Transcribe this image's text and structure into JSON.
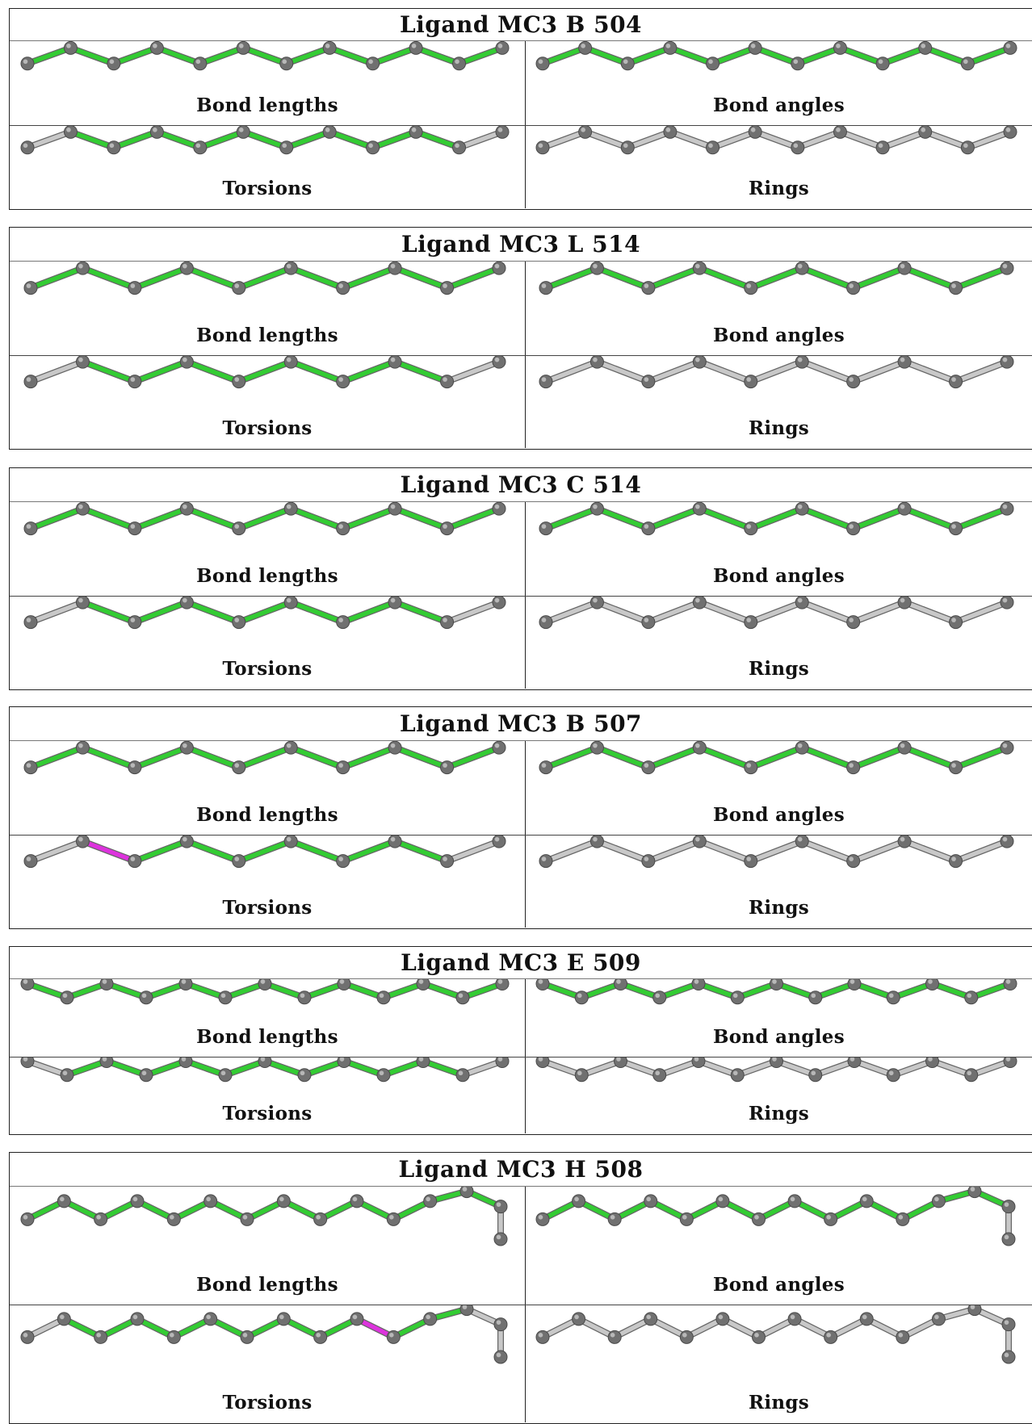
{
  "panels": [
    {
      "title": "Ligand MC3 B 504",
      "quadrants": [
        {
          "label": "Bond lengths",
          "bonds": [
            "green",
            "green",
            "green",
            "green",
            "green",
            "green",
            "green",
            "green",
            "green",
            "green",
            "green"
          ]
        },
        {
          "label": "Bond angles",
          "bonds": [
            "green",
            "green",
            "green",
            "green",
            "green",
            "green",
            "green",
            "green",
            "green",
            "green",
            "green"
          ]
        },
        {
          "label": "Torsions",
          "bonds": [
            "grey",
            "green",
            "green",
            "green",
            "green",
            "green",
            "green",
            "green",
            "green",
            "green",
            "grey"
          ]
        },
        {
          "label": "Rings",
          "bonds": [
            "grey",
            "grey",
            "grey",
            "grey",
            "grey",
            "grey",
            "grey",
            "grey",
            "grey",
            "grey",
            "grey"
          ]
        }
      ]
    },
    {
      "title": "Ligand MC3 L 514",
      "quadrants": [
        {
          "label": "Bond lengths",
          "bonds": [
            "green",
            "green",
            "green",
            "green",
            "green",
            "green",
            "green",
            "green",
            "green"
          ]
        },
        {
          "label": "Bond angles",
          "bonds": [
            "green",
            "green",
            "green",
            "green",
            "green",
            "green",
            "green",
            "green",
            "green"
          ]
        },
        {
          "label": "Torsions",
          "bonds": [
            "grey",
            "green",
            "green",
            "green",
            "green",
            "green",
            "green",
            "green",
            "grey"
          ]
        },
        {
          "label": "Rings",
          "bonds": [
            "grey",
            "grey",
            "grey",
            "grey",
            "grey",
            "grey",
            "grey",
            "grey",
            "grey"
          ]
        }
      ]
    },
    {
      "title": "Ligand MC3 C 514",
      "quadrants": [
        {
          "label": "Bond lengths",
          "bonds": [
            "green",
            "green",
            "green",
            "green",
            "green",
            "green",
            "green",
            "green",
            "green"
          ]
        },
        {
          "label": "Bond angles",
          "bonds": [
            "green",
            "green",
            "green",
            "green",
            "green",
            "green",
            "green",
            "green",
            "green"
          ]
        },
        {
          "label": "Torsions",
          "bonds": [
            "grey",
            "green",
            "green",
            "green",
            "green",
            "green",
            "green",
            "green",
            "grey"
          ]
        },
        {
          "label": "Rings",
          "bonds": [
            "grey",
            "grey",
            "grey",
            "grey",
            "grey",
            "grey",
            "grey",
            "grey",
            "grey"
          ]
        }
      ]
    },
    {
      "title": "Ligand MC3 B 507",
      "quadrants": [
        {
          "label": "Bond lengths",
          "bonds": [
            "green",
            "green",
            "green",
            "green",
            "green",
            "green",
            "green",
            "green",
            "green"
          ]
        },
        {
          "label": "Bond angles",
          "bonds": [
            "green",
            "green",
            "green",
            "green",
            "green",
            "green",
            "green",
            "green",
            "green"
          ]
        },
        {
          "label": "Torsions",
          "bonds": [
            "grey",
            "magenta",
            "green",
            "green",
            "green",
            "green",
            "green",
            "green",
            "grey"
          ]
        },
        {
          "label": "Rings",
          "bonds": [
            "grey",
            "grey",
            "grey",
            "grey",
            "grey",
            "grey",
            "grey",
            "grey",
            "grey"
          ]
        }
      ]
    },
    {
      "title": "Ligand MC3 E 509",
      "quadrants": [
        {
          "label": "Bond lengths",
          "bonds": [
            "green",
            "green",
            "green",
            "green",
            "green",
            "green",
            "green",
            "green",
            "green",
            "green",
            "green",
            "green"
          ]
        },
        {
          "label": "Bond angles",
          "bonds": [
            "green",
            "green",
            "green",
            "green",
            "green",
            "green",
            "green",
            "green",
            "green",
            "green",
            "green",
            "green"
          ]
        },
        {
          "label": "Torsions",
          "bonds": [
            "grey",
            "green",
            "green",
            "green",
            "green",
            "green",
            "green",
            "green",
            "green",
            "green",
            "green",
            "grey"
          ]
        },
        {
          "label": "Rings",
          "bonds": [
            "grey",
            "grey",
            "grey",
            "grey",
            "grey",
            "grey",
            "grey",
            "grey",
            "grey",
            "grey",
            "grey",
            "grey"
          ]
        }
      ]
    },
    {
      "title": "Ligand MC3 H 508",
      "quadrants": [
        {
          "label": "Bond lengths",
          "bonds": [
            "green",
            "green",
            "green",
            "green",
            "green",
            "green",
            "green",
            "green",
            "green",
            "green",
            "green",
            "green",
            "green"
          ]
        },
        {
          "label": "Bond angles",
          "bonds": [
            "green",
            "green",
            "green",
            "green",
            "green",
            "green",
            "green",
            "green",
            "green",
            "green",
            "green",
            "green",
            "green"
          ]
        },
        {
          "label": "Torsions",
          "bonds": [
            "grey",
            "green",
            "green",
            "green",
            "green",
            "green",
            "green",
            "green",
            "green",
            "magenta",
            "green",
            "green",
            "grey"
          ]
        },
        {
          "label": "Rings",
          "bonds": [
            "grey",
            "grey",
            "grey",
            "grey",
            "grey",
            "grey",
            "grey",
            "grey",
            "grey",
            "grey",
            "grey",
            "grey",
            "grey"
          ]
        }
      ]
    }
  ],
  "colors": {
    "green": "#33cc33",
    "grey": "#c8c8c8",
    "magenta": "#dd33dd",
    "atom": "#707070"
  }
}
